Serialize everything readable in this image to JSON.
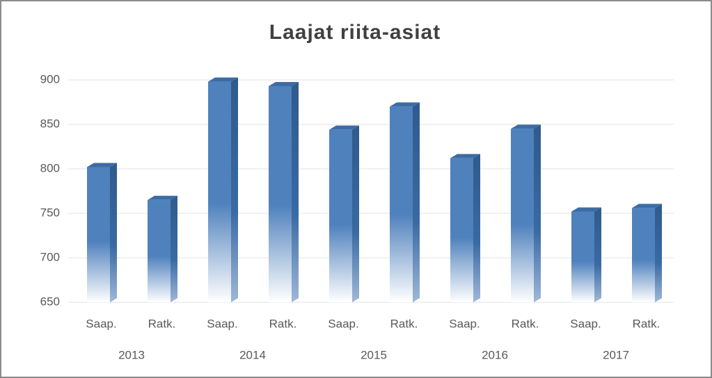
{
  "chart_data": {
    "type": "bar3d",
    "title": "Laajat riita-asiat",
    "categories": [
      "Saap.",
      "Ratk.",
      "Saap.",
      "Ratk.",
      "Saap.",
      "Ratk.",
      "Saap.",
      "Ratk.",
      "Saap.",
      "Ratk."
    ],
    "groups": [
      "2013",
      "2014",
      "2015",
      "2016",
      "2017"
    ],
    "values": [
      802,
      765,
      898,
      893,
      844,
      870,
      812,
      845,
      752,
      756
    ],
    "color": "#4f81bd",
    "ylim": [
      650,
      900
    ],
    "yticks": [
      650,
      700,
      750,
      800,
      850,
      900
    ],
    "grid": true
  }
}
